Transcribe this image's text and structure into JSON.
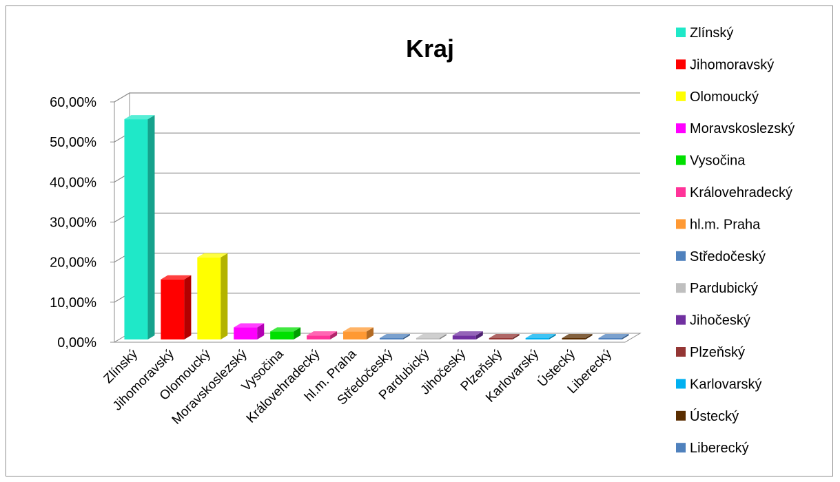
{
  "chart_data": {
    "type": "bar",
    "title": "Kraj",
    "categories": [
      "Zlínský",
      "Jihomoravský",
      "Olomoucký",
      "Moravskoslezský",
      "Vysočina",
      "Královehradecký",
      "hl.m. Praha",
      "Středočeský",
      "Pardubický",
      "Jihočeský",
      "Plzeňský",
      "Karlovarský",
      "Ústecký",
      "Liberecký"
    ],
    "values": [
      0.55,
      0.15,
      0.205,
      0.03,
      0.02,
      0.01,
      0.02,
      0.0,
      0.0,
      0.01,
      0.0,
      0.0,
      0.0,
      0.0
    ],
    "colors": [
      "#1fe8c8",
      "#ff0000",
      "#ffff00",
      "#ff00ff",
      "#00e000",
      "#ff3399",
      "#ff9933",
      "#4f81bd",
      "#bfbfbf",
      "#7030a0",
      "#943634",
      "#00b0f0",
      "#5a2d00",
      "#4f81bd"
    ],
    "yticks": [
      "0,00%",
      "10,00%",
      "20,00%",
      "30,00%",
      "40,00%",
      "50,00%",
      "60,00%"
    ],
    "ylim": [
      0,
      0.6
    ],
    "grid": true,
    "legend_position": "right",
    "xlabel": "",
    "ylabel": ""
  }
}
